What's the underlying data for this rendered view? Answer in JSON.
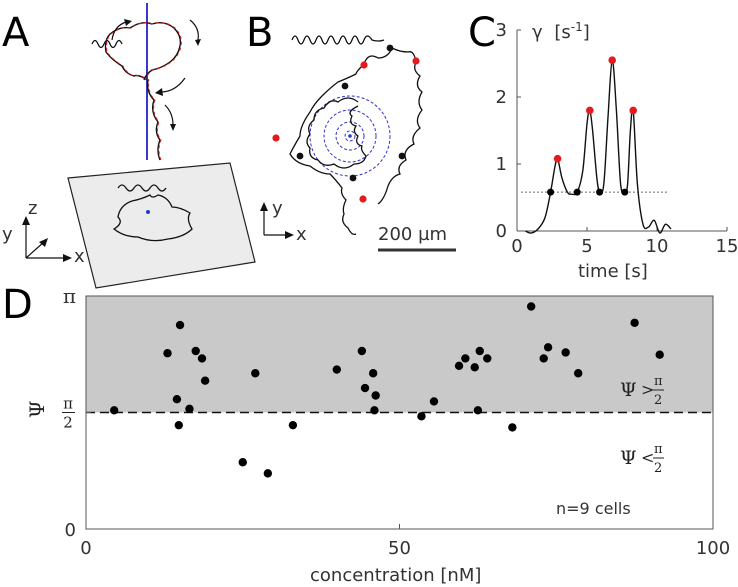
{
  "panels": {
    "A": {
      "letter": "A",
      "axis_labels": {
        "x": "x",
        "y": "y",
        "z": "z"
      }
    },
    "B": {
      "letter": "B",
      "axis_labels": {
        "x": "x",
        "y": "y"
      },
      "scalebar_label": "200 µm"
    },
    "D": {
      "letter": "D",
      "region_labels": {
        "psi": "Ψ",
        "greater": ">",
        "less": "<",
        "pi": "π",
        "two": "2"
      },
      "annotation": "n=9 cells"
    }
  },
  "chart_data": [
    {
      "panel": "C",
      "letter": "C",
      "type": "line",
      "xlabel": "time [s]",
      "ylabel": "γ [s-1]",
      "ylabel_symbol": "γ",
      "ylabel_unit_base": "[s",
      "ylabel_unit_exp": "-1",
      "ylabel_unit_close": "]",
      "xlim": [
        0,
        15
      ],
      "ylim": [
        0,
        3
      ],
      "x_ticks": [
        "0",
        "5",
        "10",
        "15"
      ],
      "y_ticks": [
        "0",
        "1",
        "2",
        "3"
      ],
      "threshold": 0.58,
      "colors": {
        "peak": "#e41a1c",
        "crossing": "#000000"
      },
      "curve": {
        "x": [
          0.6,
          1.0,
          1.5,
          2.0,
          2.4,
          2.7,
          2.9,
          3.2,
          3.6,
          3.9,
          4.3,
          4.7,
          5.0,
          5.2,
          5.4,
          5.7,
          5.9,
          6.2,
          6.5,
          6.8,
          7.1,
          7.4,
          7.7,
          7.9,
          8.1,
          8.3,
          8.6,
          9.0,
          9.4,
          9.8,
          10.2,
          10.6,
          11.0
        ],
        "y": [
          0.0,
          -0.03,
          0.03,
          0.2,
          0.58,
          0.95,
          1.08,
          0.8,
          0.58,
          0.55,
          0.58,
          0.9,
          1.6,
          1.8,
          1.5,
          0.8,
          0.58,
          0.7,
          1.7,
          2.55,
          1.8,
          0.7,
          0.58,
          0.7,
          1.5,
          1.8,
          0.7,
          0.1,
          0.06,
          0.16,
          -0.03,
          0.1,
          0.03
        ]
      },
      "peaks": {
        "x": [
          2.9,
          5.2,
          6.8,
          8.3
        ],
        "y": [
          1.08,
          1.8,
          2.55,
          1.8
        ]
      },
      "crossings": {
        "x": [
          2.4,
          4.3,
          5.9,
          7.7
        ],
        "y": [
          0.58,
          0.58,
          0.58,
          0.58
        ]
      }
    },
    {
      "panel": "D",
      "type": "scatter",
      "xlabel": "concentration [nM]",
      "ylabel": "Ψ",
      "xlim": [
        0,
        100
      ],
      "ylim": [
        0,
        3.1416
      ],
      "x_ticks": [
        "0",
        "50",
        "100"
      ],
      "y_ticks": [
        {
          "value": 0,
          "label": "0"
        },
        {
          "value": 1.5708,
          "label": "π/2"
        },
        {
          "value": 3.1416,
          "label": "π"
        }
      ],
      "threshold": 1.5708,
      "shaded_region": "Ψ > π/2",
      "colors": {
        "shade": "#c9c9c9",
        "point": "#000000"
      },
      "points": {
        "x": [
          4.5,
          13,
          15,
          14.5,
          14.8,
          16.5,
          17.5,
          18.5,
          19,
          25,
          27,
          29,
          33,
          40,
          44,
          44.5,
          45.8,
          46,
          46.2,
          53.5,
          55.5,
          59.5,
          60.5,
          62,
          62.5,
          62.8,
          64,
          68,
          71,
          73,
          73.7,
          76.5,
          78.5,
          87.5,
          91.5
        ],
        "y": [
          1.6,
          2.37,
          2.75,
          1.75,
          1.4,
          1.62,
          2.4,
          2.3,
          2.0,
          0.9,
          2.1,
          0.75,
          1.4,
          2.15,
          2.4,
          1.9,
          2.1,
          1.6,
          1.8,
          1.52,
          1.72,
          2.2,
          2.3,
          2.18,
          1.6,
          2.4,
          2.3,
          1.37,
          3.0,
          2.3,
          2.45,
          2.38,
          2.1,
          2.78,
          2.35
        ]
      }
    }
  ]
}
